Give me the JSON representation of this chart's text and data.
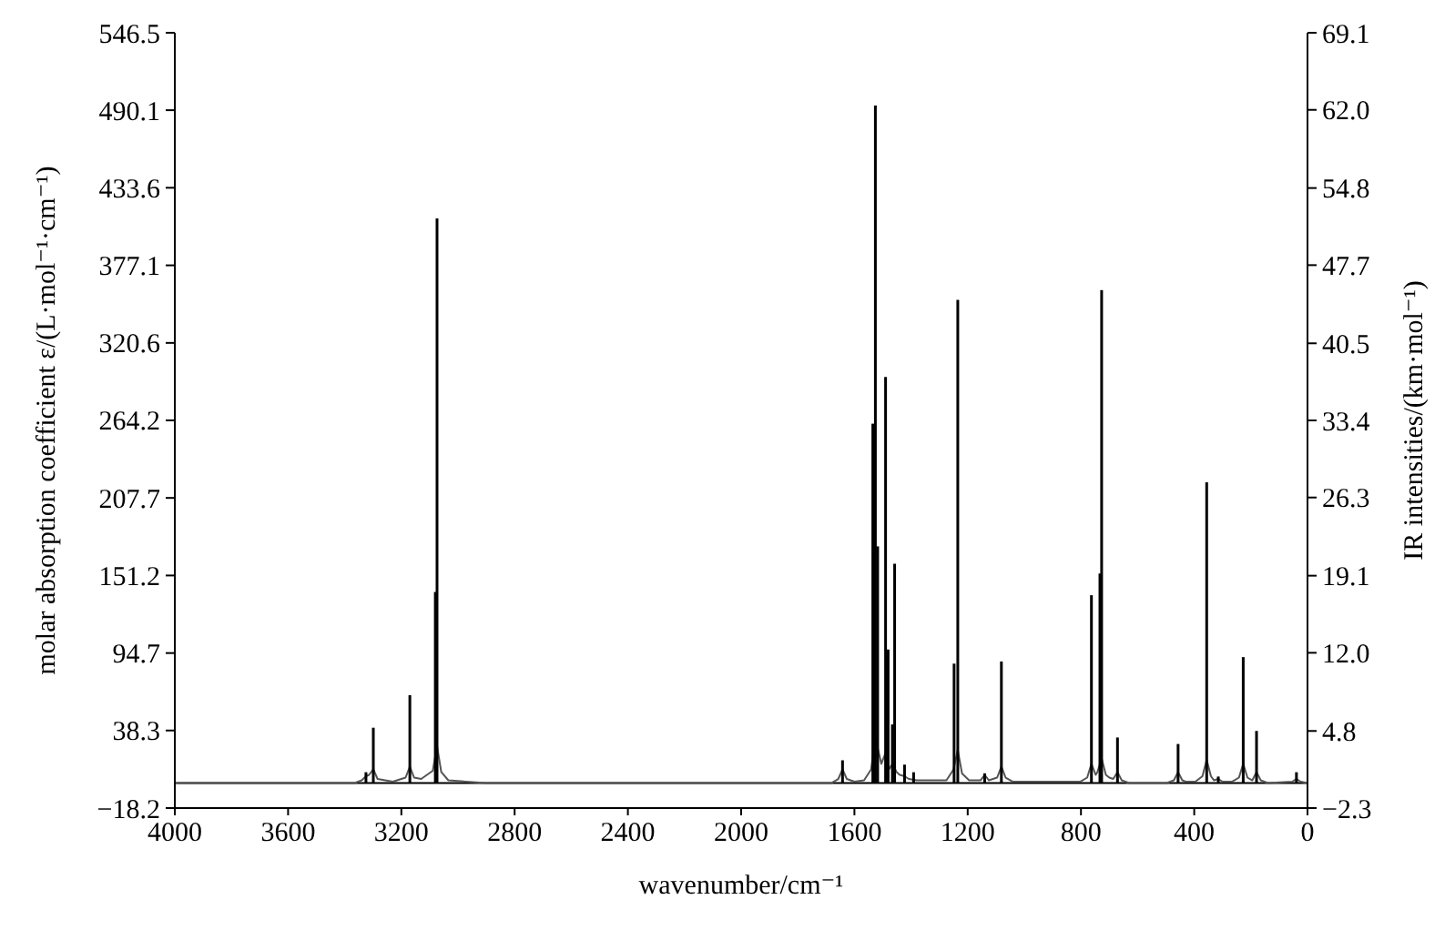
{
  "chart_data": {
    "type": "line",
    "xlabel": "wavenumber/cm⁻¹",
    "ylabel": "molar absorption coefficient ε/(L·mol⁻¹·cm⁻¹)",
    "y2label": "IR intensities/(km·mol⁻¹)",
    "xlim": [
      4000,
      0
    ],
    "xticks": [
      4000,
      3600,
      3200,
      2800,
      2400,
      2000,
      1600,
      1200,
      800,
      400,
      0
    ],
    "ylim": [
      -18.2,
      546.5
    ],
    "yticks": [
      -18.2,
      38.3,
      94.7,
      151.2,
      207.7,
      264.2,
      320.6,
      377.1,
      433.6,
      490.1,
      546.5
    ],
    "y2lim": [
      -2.3,
      69.1
    ],
    "y2ticks": [
      -2.3,
      4.8,
      {
        "value": 12,
        "label": "12.0"
      },
      19.1,
      26.3,
      33.4,
      40.5,
      47.7,
      54.8,
      {
        "value": 62,
        "label": "62.0"
      },
      69.1
    ],
    "grid": false,
    "series": [
      {
        "color": "#555555",
        "x": [
          0,
          24,
          39,
          54,
          140,
          165,
          180,
          195,
          212,
          227,
          242,
          267,
          300,
          315,
          330,
          341,
          356,
          371,
          396,
          430,
          442,
          457,
          472,
          497,
          630,
          656,
          671,
          686,
          700,
          712,
          727,
          742,
          748,
          763,
          778,
          803,
          1040,
          1066,
          1081,
          1096,
          1125,
          1140,
          1155,
          1195,
          1220,
          1235,
          1250,
          1275,
          1380,
          1408,
          1423,
          1440,
          1451,
          1466,
          1478,
          1490,
          1505,
          1526,
          1541,
          1566,
          1600,
          1627,
          1642,
          1657,
          1682,
          2900,
          3034,
          3059,
          3074,
          3089,
          3130,
          3155,
          3170,
          3185,
          3230,
          3284,
          3299,
          3314,
          3325,
          3340,
          3365,
          4000
        ],
        "values": [
          0,
          1,
          3,
          1,
          0,
          2,
          8,
          2,
          4,
          14,
          4,
          1,
          1,
          3,
          2,
          5,
          17,
          5,
          1,
          1,
          2,
          8,
          2,
          0,
          0,
          2,
          8,
          3,
          4,
          6,
          18,
          8,
          6,
          14,
          4,
          1,
          1,
          4,
          12,
          4,
          2,
          6,
          2,
          2,
          7,
          24,
          10,
          2,
          2,
          3,
          5,
          6,
          8,
          14,
          10,
          22,
          14,
          33,
          10,
          2,
          1,
          3,
          10,
          3,
          0,
          0,
          2,
          8,
          27,
          9,
          3,
          4,
          12,
          4,
          1,
          3,
          10,
          6,
          5,
          2,
          0,
          0
        ]
      },
      {
        "type": "bar",
        "axis": "y2",
        "color": "#000000",
        "x": [
          39,
          180,
          227,
          315,
          356,
          457,
          671,
          727,
          733,
          763,
          1081,
          1140,
          1235,
          1248,
          1391,
          1423,
          1458,
          1466,
          1481,
          1490,
          1518,
          1526,
          1535,
          1642,
          3074,
          3080,
          3170,
          3299,
          3325
        ],
        "values": [
          1.0,
          4.8,
          11.6,
          0.6,
          27.7,
          3.6,
          4.2,
          45.4,
          19.3,
          17.3,
          11.2,
          0.9,
          44.5,
          11.0,
          1.0,
          1.7,
          20.2,
          5.4,
          12.3,
          37.4,
          21.8,
          62.4,
          33.1,
          2.1,
          52.0,
          17.6,
          8.1,
          5.1,
          1.0
        ]
      }
    ]
  }
}
